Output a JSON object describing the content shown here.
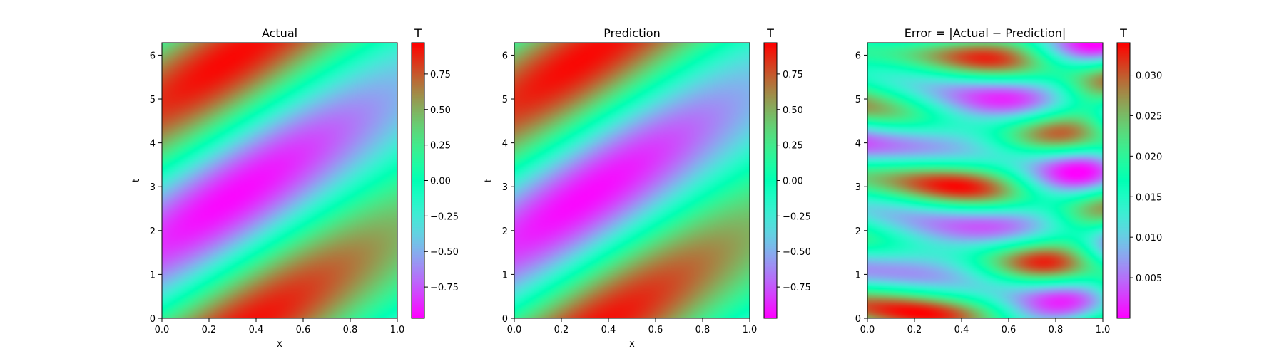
{
  "chart_data": [
    {
      "type": "heatmap",
      "title": "Actual",
      "xlabel": "x",
      "ylabel": "t",
      "xlim": [
        0.0,
        1.0
      ],
      "ylim": [
        0,
        6.283
      ],
      "xticks": [
        "0.0",
        "0.2",
        "0.4",
        "0.6",
        "0.8",
        "1.0"
      ],
      "yticks": [
        "0",
        "1",
        "2",
        "3",
        "4",
        "5",
        "6"
      ],
      "colormap": "rainbow",
      "colorbar": {
        "title": "T",
        "range": [
          -0.97,
          0.97
        ],
        "ticks": [
          "−0.75",
          "−0.50",
          "−0.25",
          "0.00",
          "0.25",
          "0.50",
          "0.75"
        ],
        "tick_values": [
          -0.75,
          -0.5,
          -0.25,
          0.0,
          0.25,
          0.5,
          0.75
        ]
      },
      "field": "wave"
    },
    {
      "type": "heatmap",
      "title": "Prediction",
      "xlabel": "x",
      "ylabel": "t",
      "xlim": [
        0.0,
        1.0
      ],
      "ylim": [
        0,
        6.283
      ],
      "xticks": [
        "0.0",
        "0.2",
        "0.4",
        "0.6",
        "0.8",
        "1.0"
      ],
      "yticks": [
        "0",
        "1",
        "2",
        "3",
        "4",
        "5",
        "6"
      ],
      "colormap": "rainbow",
      "colorbar": {
        "title": "T",
        "range": [
          -0.97,
          0.97
        ],
        "ticks": [
          "−0.75",
          "−0.50",
          "−0.25",
          "0.00",
          "0.25",
          "0.50",
          "0.75"
        ],
        "tick_values": [
          -0.75,
          -0.5,
          -0.25,
          0.0,
          0.25,
          0.5,
          0.75
        ]
      },
      "field": "wave"
    },
    {
      "type": "heatmap",
      "title": "Error = |Actual − Prediction|",
      "xlabel": "",
      "ylabel": "",
      "xlim": [
        0.0,
        1.0
      ],
      "ylim": [
        0,
        6.283
      ],
      "xticks": [
        "0.0",
        "0.2",
        "0.4",
        "0.6",
        "0.8",
        "1.0"
      ],
      "yticks": [
        "0",
        "1",
        "2",
        "3",
        "4",
        "5",
        "6"
      ],
      "colormap": "rainbow",
      "colorbar": {
        "title": "T",
        "range": [
          0.0,
          0.034
        ],
        "ticks": [
          "0.005",
          "0.010",
          "0.015",
          "0.020",
          "0.025",
          "0.030"
        ],
        "tick_values": [
          0.005,
          0.01,
          0.015,
          0.02,
          0.025,
          0.03
        ]
      },
      "field": "error"
    }
  ]
}
